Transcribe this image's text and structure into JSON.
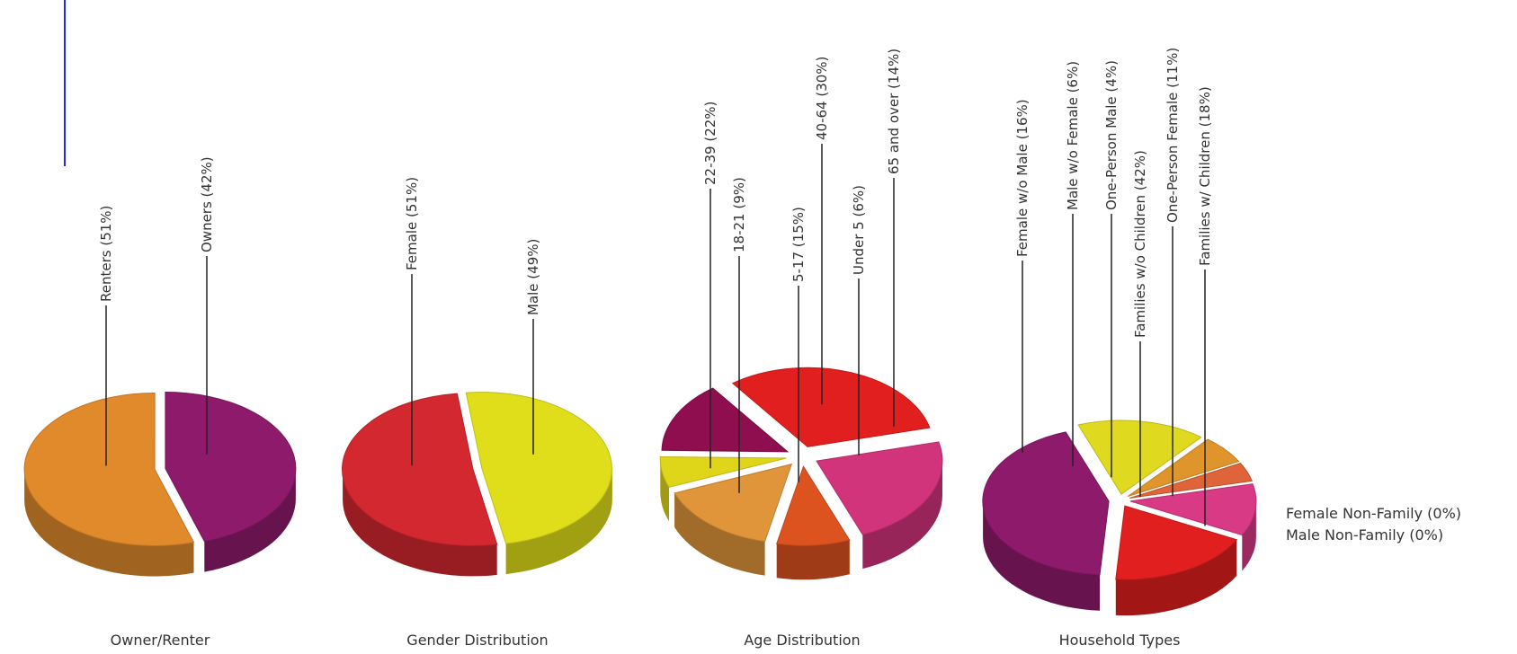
{
  "colors": {
    "accent_line": "#2a2ad8",
    "text": "#333333",
    "leader": "#222222"
  },
  "chart_data": [
    {
      "type": "pie",
      "title": "Owner/Renter",
      "slices": [
        {
          "label": "Renters (51%)",
          "value": 51,
          "color": "#e08a2c"
        },
        {
          "label": "Owners (42%)",
          "value": 42,
          "color": "#8e1a6c"
        }
      ]
    },
    {
      "type": "pie",
      "title": "Gender Distribution",
      "slices": [
        {
          "label": "Female (51%)",
          "value": 51,
          "color": "#d3282f"
        },
        {
          "label": "Male (49%)",
          "value": 49,
          "color": "#e0de1a"
        }
      ]
    },
    {
      "type": "pie",
      "title": "Age Distribution",
      "slices": [
        {
          "label": "22-39 (22%)",
          "value": 22,
          "color": "#d2347c"
        },
        {
          "label": "18-21 (9%)",
          "value": 9,
          "color": "#dd5320"
        },
        {
          "label": "5-17 (15%)",
          "value": 15,
          "color": "#e0953a"
        },
        {
          "label": "Under 5 (6%)",
          "value": 6,
          "color": "#dfd61a"
        },
        {
          "label": "65 and over (14%)",
          "value": 14,
          "color": "#8f0e50"
        },
        {
          "label": "40-64 (30%)",
          "value": 30,
          "color": "#e21f1f"
        }
      ]
    },
    {
      "type": "pie",
      "title": "Household Types",
      "slices": [
        {
          "label": "Female w/o Male (16%)",
          "value": 16,
          "color": "#dfd91f"
        },
        {
          "label": "Male w/o Female (6%)",
          "value": 6,
          "color": "#e0952c"
        },
        {
          "label": "One-Person Male (4%)",
          "value": 4,
          "color": "#e0643a"
        },
        {
          "label": "One-Person Female (11%)",
          "value": 11,
          "color": "#d93a86"
        },
        {
          "label": "Families w/ Children (18%)",
          "value": 18,
          "color": "#e21f1f"
        },
        {
          "label": "Families w/o Children (42%)",
          "value": 42,
          "color": "#8e1a6c"
        }
      ],
      "legend_notes": [
        "Female Non-Family (0%)",
        "Male Non-Family (0%)"
      ]
    }
  ]
}
